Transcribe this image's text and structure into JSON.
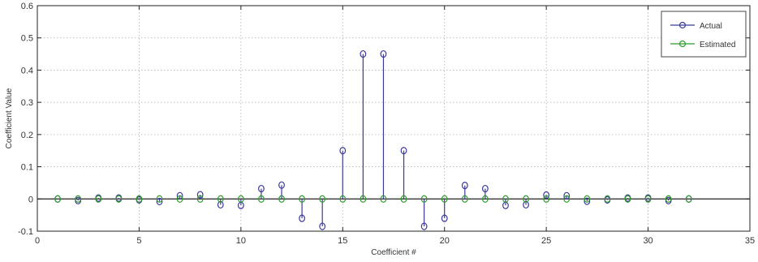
{
  "chart_data": {
    "type": "stem",
    "xlabel": "Coefficient #",
    "ylabel": "Coefficient Value",
    "xlim": [
      0,
      35
    ],
    "ylim": [
      -0.1,
      0.6
    ],
    "xticks": [
      0,
      5,
      10,
      15,
      20,
      25,
      30,
      35
    ],
    "yticks": [
      -0.1,
      0,
      0.1,
      0.2,
      0.3,
      0.4,
      0.5,
      0.6
    ],
    "ytick_labels": [
      "-0.1",
      "0",
      "0.1",
      "0.2",
      "0.3",
      "0.4",
      "0.5",
      "0.6"
    ],
    "grid": true,
    "legend_position": "top-right",
    "series": [
      {
        "name": "Actual",
        "color": "#3b3b9a",
        "x": [
          1,
          2,
          3,
          4,
          5,
          6,
          7,
          8,
          9,
          10,
          11,
          12,
          13,
          14,
          15,
          16,
          17,
          18,
          19,
          20,
          21,
          22,
          23,
          24,
          25,
          26,
          27,
          28,
          29,
          30,
          31,
          32
        ],
        "values": [
          0,
          -0.005,
          0.003,
          0.003,
          -0.003,
          -0.008,
          0.01,
          0.013,
          -0.018,
          -0.02,
          0.032,
          0.043,
          -0.06,
          -0.085,
          0.15,
          0.45,
          0.45,
          0.15,
          -0.085,
          -0.06,
          0.042,
          0.032,
          -0.02,
          -0.018,
          0.012,
          0.01,
          -0.007,
          -0.003,
          0.003,
          0.003,
          -0.005,
          0
        ]
      },
      {
        "name": "Estimated",
        "color": "#2e9a2e",
        "x": [
          1,
          2,
          3,
          4,
          5,
          6,
          7,
          8,
          9,
          10,
          11,
          12,
          13,
          14,
          15,
          16,
          17,
          18,
          19,
          20,
          21,
          22,
          23,
          24,
          25,
          26,
          27,
          28,
          29,
          30,
          31,
          32
        ],
        "values": [
          0,
          0,
          0,
          0,
          0,
          0,
          0,
          0,
          0,
          0,
          0,
          0,
          0,
          0,
          0,
          0,
          0,
          0,
          0,
          0,
          0,
          0,
          0,
          0,
          0,
          0,
          0,
          0,
          0,
          0,
          0,
          0
        ]
      }
    ]
  }
}
